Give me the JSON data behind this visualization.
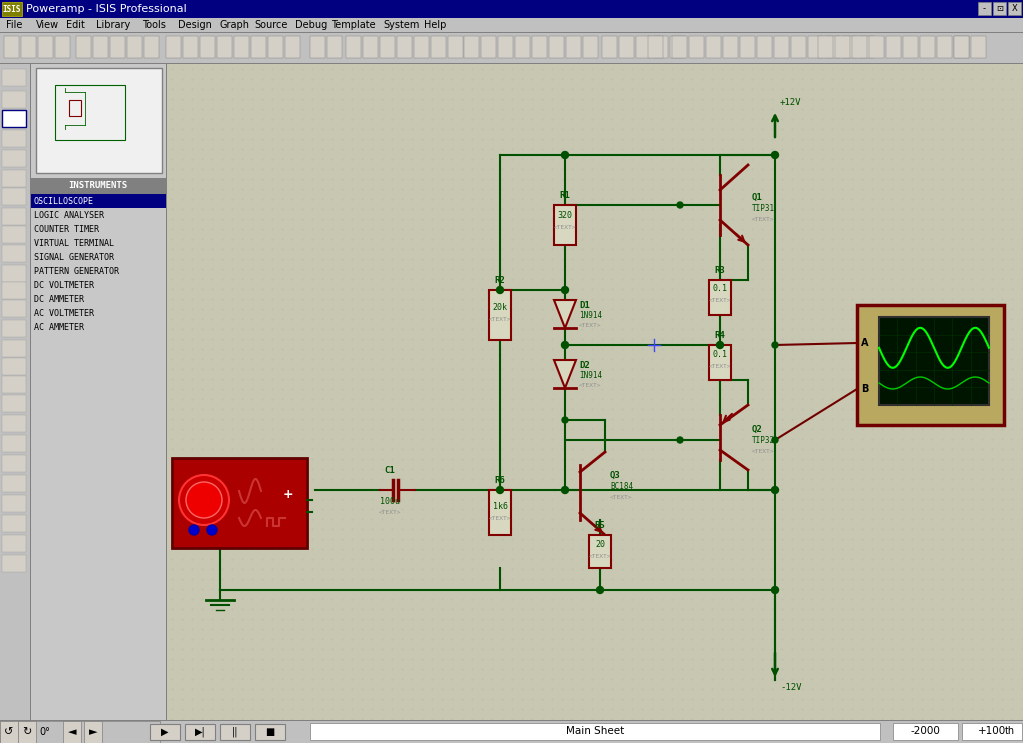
{
  "title": "Poweramp - ISIS Professional",
  "window_bg": "#c0c0c0",
  "canvas_bg": "#c8c8b2",
  "titlebar_bg": "#000080",
  "titlebar_text": "Poweramp - ISIS Professional",
  "menubar_items": [
    "File",
    "View",
    "Edit",
    "Library",
    "Tools",
    "Design",
    "Graph",
    "Source",
    "Debug",
    "Template",
    "System",
    "Help"
  ],
  "instruments_list": [
    "OSCILLOSCOPE",
    "LOGIC ANALYSER",
    "COUNTER TIMER",
    "VIRTUAL TERMINAL",
    "SIGNAL GENERATOR",
    "PATTERN GENERATOR",
    "DC VOLTMETER",
    "DC AMMETER",
    "AC VOLTMETER",
    "AC AMMETER"
  ],
  "wire_color": "#005000",
  "component_color": "#800000",
  "text_color": "#005000",
  "grey_text": "#909090",
  "statusbar_text1": "Main Sheet",
  "statusbar_text2": "-2000",
  "statusbar_text3": "+100  th"
}
